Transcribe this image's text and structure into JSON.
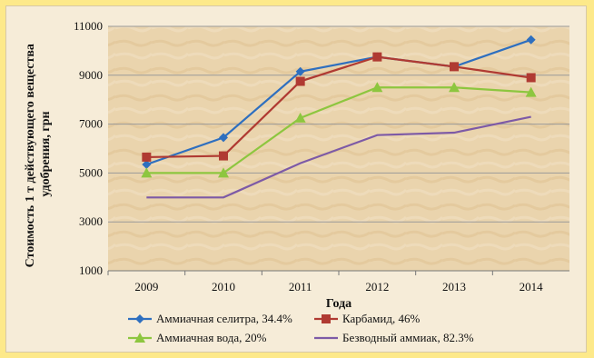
{
  "chart_data": {
    "type": "line",
    "categories": [
      "2009",
      "2010",
      "2011",
      "2012",
      "2013",
      "2014"
    ],
    "series": [
      {
        "name": "Аммиачная селитра, 34.4%",
        "color": "#2e6fbf",
        "marker": "diamond",
        "values": [
          5350,
          6450,
          9150,
          9750,
          9350,
          10450
        ]
      },
      {
        "name": "Карбамид, 46%",
        "color": "#b03a32",
        "marker": "square",
        "values": [
          5650,
          5700,
          8750,
          9750,
          9350,
          8900
        ]
      },
      {
        "name": "Аммиачная вода, 20%",
        "color": "#8dc63f",
        "marker": "triangle",
        "values": [
          5000,
          5000,
          7250,
          8500,
          8500,
          8300
        ]
      },
      {
        "name": "Безводный аммиак, 82.3%",
        "color": "#7d5aa6",
        "marker": "none",
        "values": [
          4000,
          4000,
          5400,
          6550,
          6650,
          7300
        ]
      }
    ],
    "yticks": [
      "1000",
      "3000",
      "5000",
      "7000",
      "9000",
      "11000"
    ],
    "ylim": [
      1000,
      11000
    ],
    "xlabel": "Годa",
    "ylabel": "Стоимость 1 т действующего вещества удобрения, грн",
    "grid": "horizontal",
    "legend_position": "bottom"
  }
}
